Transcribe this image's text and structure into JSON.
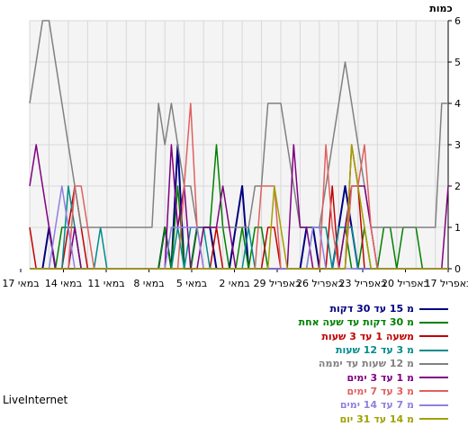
{
  "brand": "LiveInternet",
  "chart_data": {
    "type": "line",
    "ylabel": "כמות",
    "ylim": [
      0,
      6
    ],
    "yticks": [
      0,
      1,
      2,
      3,
      4,
      5,
      6
    ],
    "x_labels": [
      "17 באפריל",
      "20 באפריל",
      "23 באפריל",
      "26 באפריל",
      "29 באפריל",
      "2 במאי",
      "5 במאי",
      "8 במאי",
      "11 במאי",
      "14 במאי",
      "17 במאי"
    ],
    "grid": true,
    "legend_position": "bottom-right",
    "series": [
      {
        "name": "מ 15 עד 30 דקות",
        "color": "#000080",
        "values": [
          0,
          0,
          0,
          1,
          0,
          0,
          0,
          0,
          0,
          0,
          0,
          0,
          0,
          0,
          0,
          0,
          0,
          0,
          0,
          0,
          0,
          1,
          0,
          3,
          0,
          0,
          1,
          1,
          1,
          0,
          0,
          0,
          1,
          2,
          0,
          0,
          0,
          0,
          0,
          0,
          0,
          0,
          0,
          1,
          1,
          0,
          0,
          0,
          1,
          2,
          1,
          0,
          0,
          0,
          0,
          0,
          0,
          0,
          0,
          0,
          0,
          0,
          0,
          0,
          0,
          0
        ]
      },
      {
        "name": "מ 30 דקות עד שעה אחת",
        "color": "#008000",
        "values": [
          0,
          0,
          0,
          0,
          0,
          1,
          1,
          1,
          0,
          0,
          0,
          0,
          0,
          0,
          0,
          0,
          0,
          0,
          0,
          0,
          0,
          1,
          0,
          2,
          0,
          0,
          1,
          1,
          1,
          3,
          1,
          0,
          0,
          1,
          0,
          1,
          1,
          0,
          0,
          0,
          0,
          0,
          0,
          0,
          0,
          0,
          0,
          0,
          0,
          1,
          0,
          0,
          1,
          0,
          0,
          1,
          1,
          0,
          1,
          1,
          1,
          0,
          0,
          0,
          0,
          0
        ]
      },
      {
        "name": "משעה 1 עד 3 שעות",
        "color": "#c00000",
        "values": [
          1,
          0,
          0,
          0,
          0,
          0,
          1,
          2,
          1,
          0,
          0,
          0,
          0,
          0,
          0,
          0,
          0,
          0,
          0,
          0,
          0,
          0,
          0,
          0,
          0,
          0,
          0,
          0,
          0,
          1,
          0,
          0,
          0,
          0,
          0,
          0,
          0,
          1,
          1,
          0,
          0,
          0,
          0,
          0,
          0,
          0,
          0,
          2,
          0,
          0,
          3,
          2,
          0,
          0,
          0,
          0,
          0,
          0,
          0,
          0,
          0,
          0,
          0,
          0,
          0,
          0
        ]
      },
      {
        "name": "מ 3 עד 12 שעות",
        "color": "#008b8b",
        "values": [
          0,
          0,
          0,
          0,
          0,
          0,
          2,
          1,
          0,
          0,
          0,
          1,
          0,
          0,
          0,
          0,
          0,
          0,
          0,
          0,
          0,
          0,
          0,
          1,
          0,
          1,
          1,
          1,
          0,
          0,
          0,
          0,
          0,
          0,
          1,
          0,
          0,
          0,
          0,
          0,
          0,
          0,
          0,
          0,
          1,
          1,
          1,
          0,
          1,
          1,
          1,
          0,
          0,
          0,
          0,
          0,
          0,
          0,
          0,
          0,
          0,
          0,
          0,
          0,
          0,
          0
        ]
      },
      {
        "name": "מ 12 שעות עד יממה",
        "color": "#808080",
        "values": [
          4,
          5,
          6,
          6,
          5,
          4,
          3,
          2,
          1,
          1,
          1,
          1,
          1,
          1,
          1,
          1,
          1,
          1,
          1,
          1,
          4,
          3,
          4,
          3,
          2,
          2,
          1,
          1,
          1,
          1,
          1,
          1,
          1,
          1,
          1,
          2,
          2,
          4,
          4,
          4,
          3,
          2,
          1,
          1,
          1,
          1,
          2,
          3,
          4,
          5,
          4,
          3,
          2,
          1,
          1,
          1,
          1,
          1,
          1,
          1,
          1,
          1,
          1,
          1,
          4,
          4
        ]
      },
      {
        "name": "מ 1 עד 3 ימים",
        "color": "#800080",
        "values": [
          2,
          3,
          2,
          1,
          0,
          0,
          0,
          1,
          0,
          0,
          0,
          0,
          0,
          0,
          0,
          0,
          0,
          0,
          0,
          0,
          0,
          0,
          3,
          1,
          2,
          0,
          0,
          1,
          1,
          1,
          2,
          1,
          0,
          0,
          0,
          0,
          0,
          0,
          0,
          0,
          0,
          3,
          1,
          1,
          0,
          0,
          0,
          0,
          0,
          1,
          2,
          2,
          2,
          1,
          0,
          0,
          0,
          0,
          0,
          0,
          0,
          0,
          0,
          0,
          0,
          2
        ]
      },
      {
        "name": "מ 3 עד 7 ימים",
        "color": "#e06060",
        "values": [
          0,
          0,
          0,
          0,
          0,
          0,
          0,
          2,
          2,
          1,
          0,
          0,
          0,
          0,
          0,
          0,
          0,
          0,
          0,
          0,
          0,
          0,
          0,
          0,
          2,
          4,
          1,
          0,
          0,
          0,
          0,
          0,
          0,
          0,
          0,
          0,
          2,
          2,
          2,
          0,
          0,
          0,
          0,
          0,
          0,
          0,
          3,
          1,
          0,
          0,
          2,
          2,
          3,
          1,
          0,
          0,
          0,
          0,
          0,
          0,
          0,
          0,
          0,
          0,
          0,
          0
        ]
      },
      {
        "name": "מ 7 עד 14 ימים",
        "color": "#9080e0",
        "values": [
          0,
          0,
          0,
          0,
          1,
          2,
          1,
          0,
          0,
          0,
          0,
          0,
          0,
          0,
          0,
          0,
          0,
          0,
          0,
          0,
          0,
          0,
          1,
          1,
          1,
          1,
          1,
          0,
          0,
          0,
          0,
          0,
          0,
          0,
          0,
          0,
          0,
          0,
          0,
          0,
          0,
          0,
          0,
          0,
          1,
          1,
          0,
          0,
          0,
          0,
          0,
          0,
          0,
          0,
          0,
          0,
          0,
          0,
          0,
          0,
          0,
          0,
          0,
          0,
          0,
          0
        ]
      },
      {
        "name": "מ 14 עד 31 יום",
        "color": "#a0a000",
        "values": [
          0,
          0,
          0,
          0,
          0,
          0,
          0,
          0,
          0,
          0,
          0,
          0,
          0,
          0,
          0,
          0,
          0,
          0,
          0,
          0,
          0,
          0,
          0,
          0,
          0,
          0,
          0,
          0,
          0,
          0,
          0,
          0,
          0,
          0,
          0,
          0,
          0,
          0,
          2,
          1,
          0,
          0,
          0,
          0,
          0,
          0,
          0,
          0,
          0,
          0,
          3,
          2,
          1,
          0,
          0,
          0,
          0,
          0,
          0,
          0,
          0,
          0,
          0,
          0,
          0,
          0
        ]
      }
    ]
  }
}
